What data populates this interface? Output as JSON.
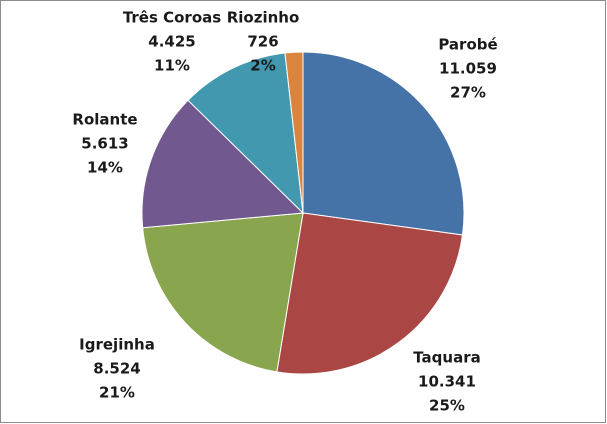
{
  "chart_data": {
    "type": "pie",
    "categories": [
      "Parobé",
      "Taquara",
      "Igrejinha",
      "Rolante",
      "Três Coroas",
      "Riozinho"
    ],
    "values": [
      11059,
      10341,
      8524,
      5613,
      4425,
      726
    ],
    "value_labels": [
      "11.059",
      "10.341",
      "8.524",
      "5.613",
      "4.425",
      "726"
    ],
    "percent_labels": [
      "27%",
      "25%",
      "21%",
      "14%",
      "11%",
      "2%"
    ],
    "colors": [
      "#4572A7",
      "#AA4643",
      "#89A54E",
      "#71588F",
      "#4198AF",
      "#DB843D"
    ]
  }
}
